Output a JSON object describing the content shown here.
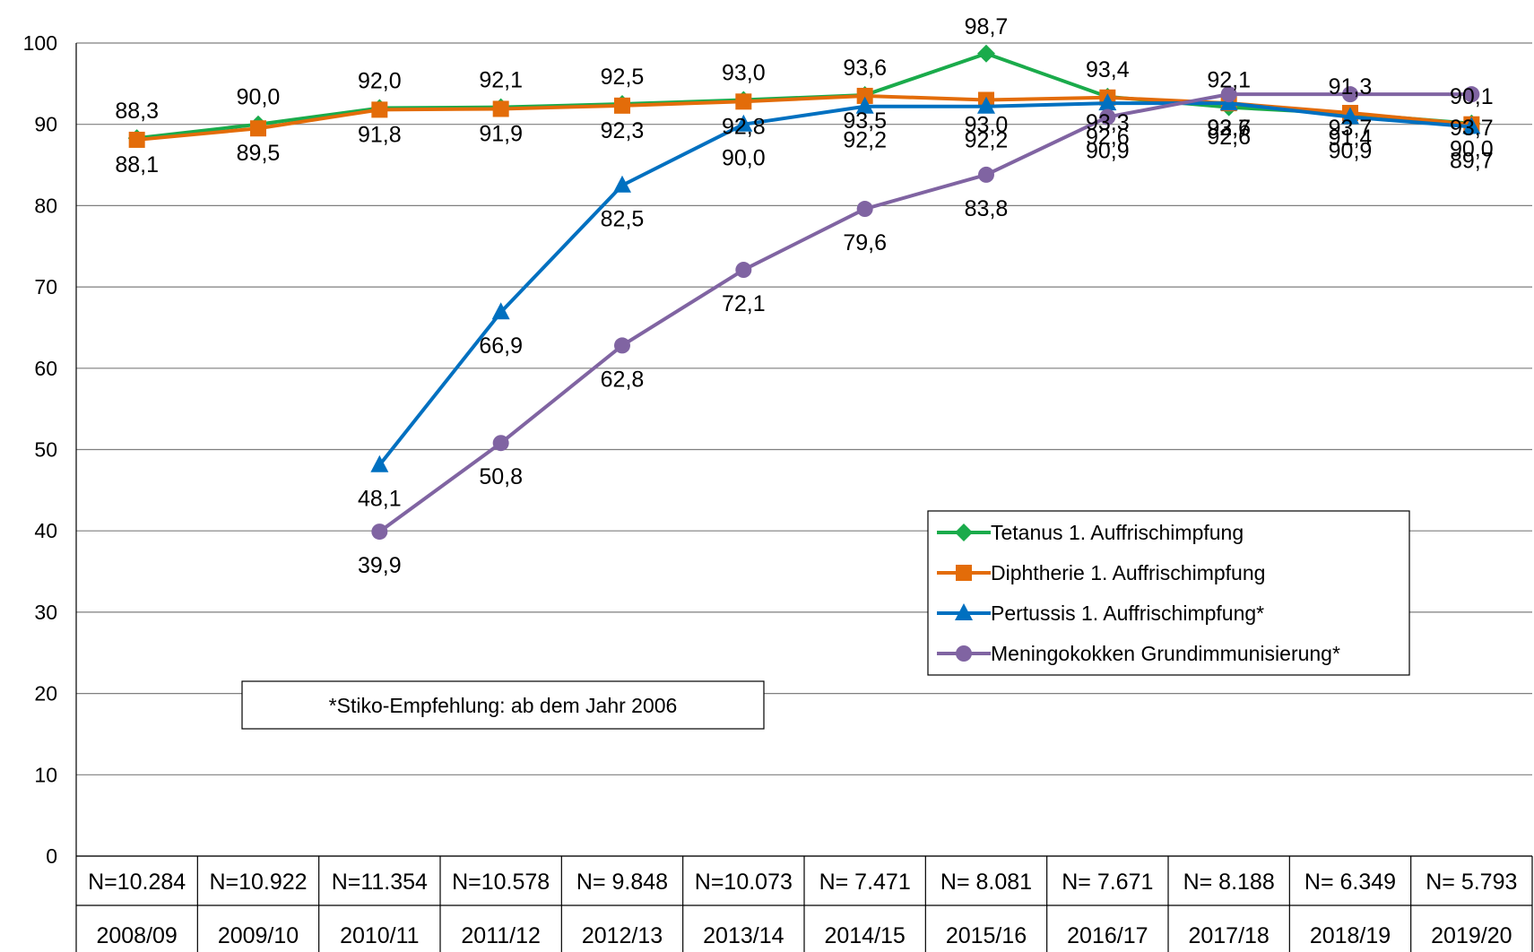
{
  "chart_data": {
    "type": "line",
    "title": "",
    "xlabel": "",
    "ylabel": "",
    "ylim": [
      0,
      100
    ],
    "yticks": [
      "0",
      "10",
      "20",
      "30",
      "40",
      "50",
      "60",
      "70",
      "80",
      "90",
      "100"
    ],
    "grid": true,
    "legend_position": "right",
    "categories": [
      "2008/09",
      "2009/10",
      "2010/11",
      "2011/12",
      "2012/13",
      "2013/14",
      "2014/15",
      "2015/16",
      "2016/17",
      "2017/18",
      "2018/19",
      "2019/20"
    ],
    "sample_sizes": [
      "N=10.284",
      "N=10.922",
      "N=11.354",
      "N=10.578",
      "N= 9.848",
      "N=10.073",
      "N= 7.471",
      "N= 8.081",
      "N= 7.671",
      "N= 8.188",
      "N= 6.349",
      "N= 5.793"
    ],
    "series": [
      {
        "name": "Tetanus 1. Auffrischimpfung",
        "color": "#1aab4b",
        "marker": "diamond",
        "values": [
          88.3,
          90.0,
          92.0,
          92.1,
          92.5,
          93.0,
          93.6,
          98.7,
          93.4,
          92.1,
          91.3,
          90.1
        ],
        "labels": [
          "88,3",
          "90,0",
          "92,0",
          "92,1",
          "92,5",
          "93,0",
          "93,6",
          "98,7",
          "93,4",
          "92,1",
          "91,3",
          "90,1"
        ]
      },
      {
        "name": "Diphtherie 1. Auffrischimpfung",
        "color": "#e36c09",
        "marker": "square",
        "values": [
          88.1,
          89.5,
          91.8,
          91.9,
          92.3,
          92.8,
          93.5,
          93.0,
          93.3,
          92.6,
          91.4,
          90.0
        ],
        "labels": [
          "88,1",
          "89,5",
          "91,8",
          "91,9",
          "92,3",
          "92,8",
          "93,5",
          "93,0",
          "93,3",
          "92,6",
          "91,4",
          "90,0"
        ]
      },
      {
        "name": "Pertussis 1. Auffrischimpfung*",
        "color": "#0070c0",
        "marker": "triangle",
        "values": [
          null,
          null,
          48.1,
          66.9,
          82.5,
          90.0,
          92.2,
          92.2,
          92.6,
          92.6,
          90.9,
          89.7
        ],
        "labels": [
          "",
          "",
          "48,1",
          "66,9",
          "82,5",
          "90,0",
          "92,2",
          "92,2",
          "92,6",
          "92,6",
          "90,9",
          "89,7"
        ]
      },
      {
        "name": "Meningokokken Grundimmunisierung*",
        "color": "#8064a2",
        "marker": "circle",
        "values": [
          null,
          null,
          39.9,
          50.8,
          62.8,
          72.1,
          79.6,
          83.8,
          90.9,
          93.7,
          93.7,
          93.7
        ],
        "labels": [
          "",
          "",
          "39,9",
          "50,8",
          "62,8",
          "72,1",
          "79,6",
          "83,8",
          "90,9",
          "93,7",
          "93,7",
          "93,7"
        ]
      }
    ],
    "annotation": "*Stiko-Empfehlung: ab dem Jahr 2006"
  }
}
